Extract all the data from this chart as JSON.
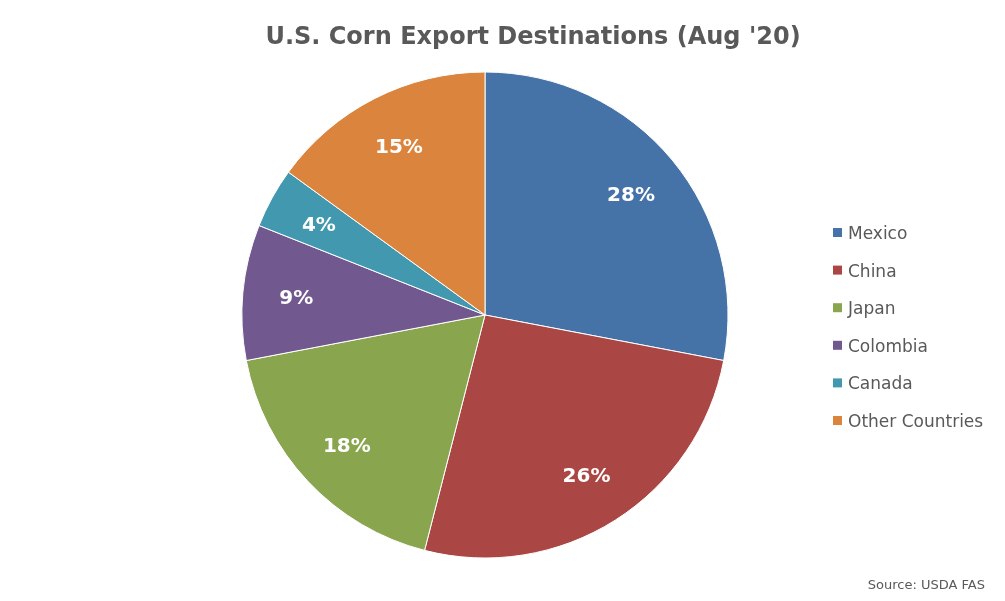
{
  "chart_data": {
    "type": "pie",
    "title": "U.S. Corn Export Destinations (Aug '20)",
    "categories": [
      "Mexico",
      "China",
      "Japan",
      "Colombia",
      "Canada",
      "Other Countries"
    ],
    "values": [
      28,
      26,
      18,
      9,
      4,
      15
    ],
    "value_labels": [
      "28%",
      "26%",
      "18%",
      "9%",
      "4%",
      "15%"
    ],
    "colors": [
      "#4572a7",
      "#aa4643",
      "#89a54e",
      "#71588f",
      "#4198af",
      "#db843d"
    ],
    "legend": "right",
    "annotations": [
      "Source: USDA FAS"
    ]
  }
}
